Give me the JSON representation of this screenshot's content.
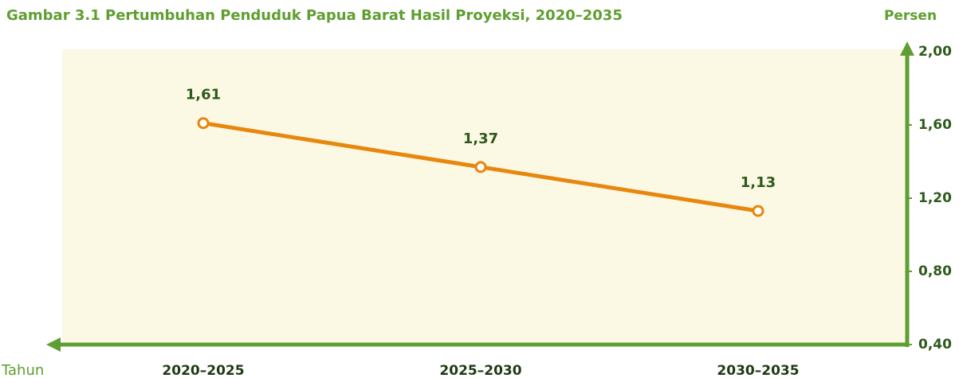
{
  "chart_data": {
    "type": "line",
    "title": "Gambar 3.1  Pertumbuhan Penduduk Papua Barat Hasil Proyeksi, 2020–2035",
    "y_label": "Persen",
    "x_label": "Tahun",
    "categories": [
      "2020–2025",
      "2025–2030",
      "2030–2035"
    ],
    "series": [
      {
        "name": "Pertumbuhan Penduduk",
        "color": "#e8870e",
        "values": [
          1.61,
          1.37,
          1.13
        ],
        "value_labels": [
          "1,61",
          "1,37",
          "1,13"
        ]
      }
    ],
    "ylim": [
      0.4,
      2.0
    ],
    "yticks": [
      {
        "value": 0.4,
        "label": "0,40"
      },
      {
        "value": 0.8,
        "label": "0,80"
      },
      {
        "value": 1.2,
        "label": "1,20"
      },
      {
        "value": 1.6,
        "label": "1,60"
      },
      {
        "value": 2.0,
        "label": "2,00"
      }
    ],
    "y_axis_side": "right",
    "grid": false
  }
}
